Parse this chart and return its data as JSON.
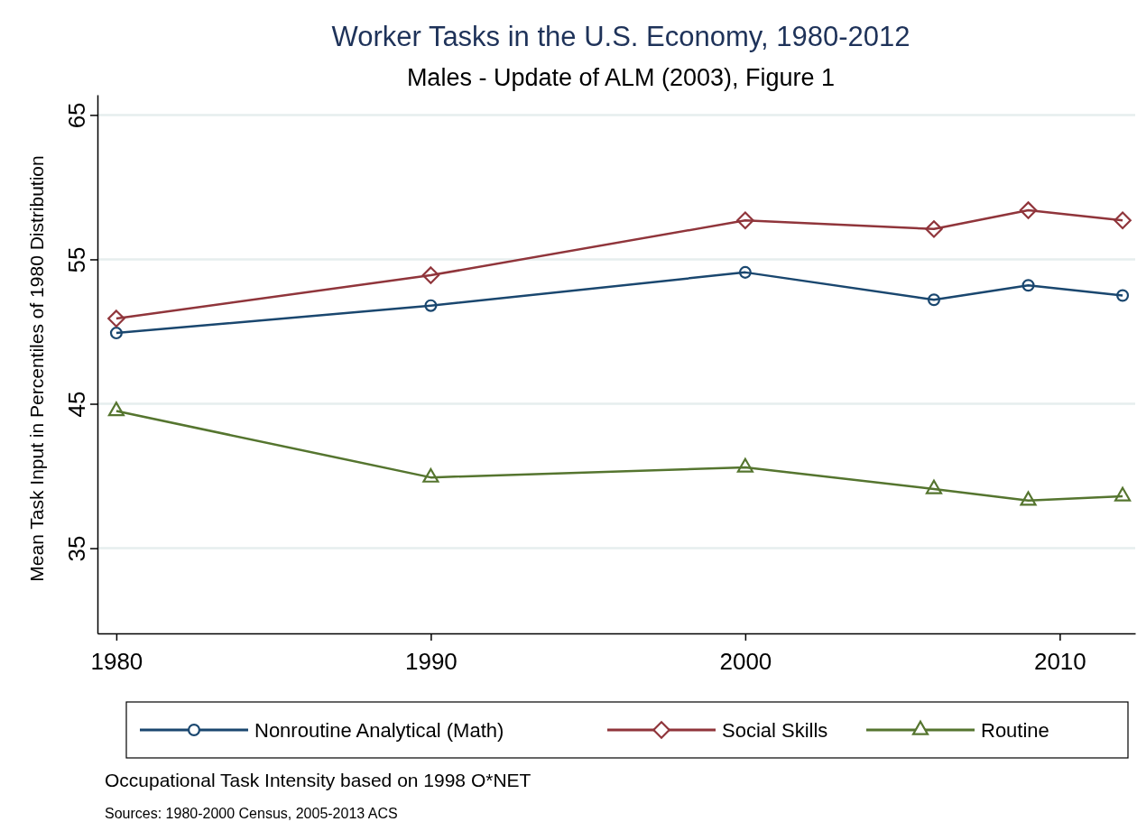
{
  "chart_data": {
    "type": "line",
    "title": "Worker Tasks in the U.S. Economy, 1980-2012",
    "subtitle": "Males - Update of ALM (2003), Figure 1",
    "ylabel": "Mean Task Input in Percentiles of 1980 Distribution",
    "x": [
      1980,
      1990,
      2000,
      2006,
      2009,
      2012
    ],
    "series": [
      {
        "name": "Nonroutine Analytical (Math)",
        "color": "#1a476f",
        "marker": "circle",
        "values": [
          49.9,
          51.8,
          54.1,
          52.2,
          53.2,
          52.5
        ]
      },
      {
        "name": "Social Skills",
        "color": "#90353b",
        "marker": "diamond",
        "values": [
          50.9,
          53.9,
          57.7,
          57.1,
          58.4,
          57.7
        ]
      },
      {
        "name": "Routine",
        "color": "#55752f",
        "marker": "triangle",
        "values": [
          44.5,
          39.9,
          40.6,
          39.1,
          38.3,
          38.6
        ]
      }
    ],
    "xlim": [
      1979.4,
      2012.4
    ],
    "xticks": [
      1980,
      1990,
      2000,
      2010
    ],
    "ylim": [
      29.1,
      66.4
    ],
    "yticks": [
      35,
      45,
      55,
      65
    ],
    "grid": "y",
    "legend": "bottom",
    "annotations": [
      "Occupational Task Intensity based on 1998 O*NET",
      "Sources: 1980-2000 Census, 2005-2013 ACS"
    ]
  }
}
